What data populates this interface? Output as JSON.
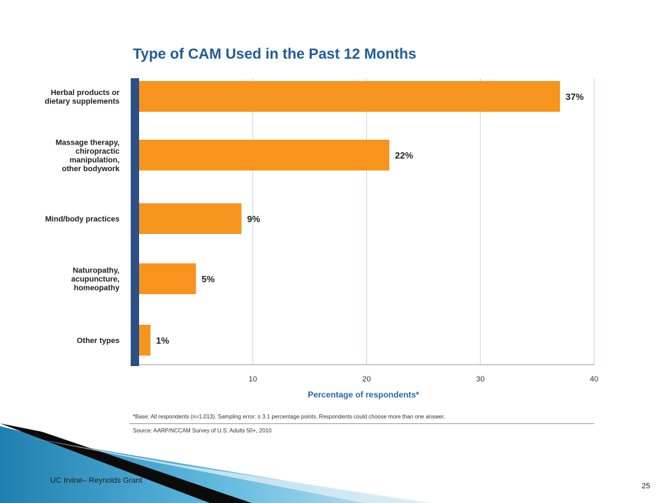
{
  "chart_data": {
    "type": "bar",
    "orientation": "horizontal",
    "title": "Type of CAM Used in the Past 12 Months",
    "categories": [
      "Herbal products or|dietary supplements",
      "Massage therapy,|chiropractic|manipulation,|other bodywork",
      "Mind/body practices",
      "Naturopathy,|acupuncture,|homeopathy",
      "Other types"
    ],
    "values": [
      37,
      22,
      9,
      5,
      1
    ],
    "value_labels": [
      "37%",
      "22%",
      "9%",
      "5%",
      "1%"
    ],
    "xlabel": "Percentage of respondents*",
    "xlim": [
      0,
      40
    ],
    "xticks": [
      10,
      20,
      30,
      40
    ],
    "grid": true,
    "colors": {
      "bar": "#f7941d",
      "axis": "#2b4f86",
      "grid": "#c9d3df",
      "title": "#1f5c99",
      "xlabel": "#2a65a8"
    }
  },
  "footnotes": {
    "base": "*Base: All respondents (n=1,013). Sampling error: ± 3.1 percentage points. Respondents could choose more than one answer.",
    "source": "Source: AARP/NCCAM Survey of U.S. Adults 50+, 2010"
  },
  "footer": {
    "left_text": "UC Irvine– Reynolds Grant",
    "page_number": "25"
  }
}
